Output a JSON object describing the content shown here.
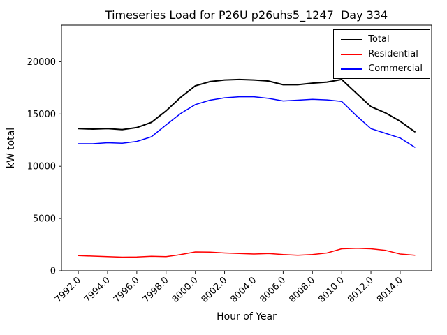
{
  "chart_data": {
    "type": "line",
    "title": "Timeseries Load for P26U p26uhs5_1247  Day 334",
    "xlabel": "Hour of Year",
    "ylabel": "kW total",
    "xlim": [
      7990.85,
      8016.15
    ],
    "ylim": [
      0,
      23500
    ],
    "grid": false,
    "legend_position": "upper right",
    "xticks": [
      7992,
      7994,
      7996,
      7998,
      8000,
      8002,
      8004,
      8006,
      8008,
      8010,
      8012,
      8014
    ],
    "xtick_labels": [
      "7992.0",
      "7994.0",
      "7996.0",
      "7998.0",
      "8000.0",
      "8002.0",
      "8004.0",
      "8006.0",
      "8008.0",
      "8010.0",
      "8012.0",
      "8014.0"
    ],
    "yticks": [
      0,
      5000,
      10000,
      15000,
      20000
    ],
    "ytick_labels": [
      "0",
      "5000",
      "10000",
      "15000",
      "20000"
    ],
    "x": [
      7992,
      7993,
      7994,
      7995,
      7996,
      7997,
      7998,
      7999,
      8000,
      8001,
      8002,
      8003,
      8004,
      8005,
      8006,
      8007,
      8008,
      8009,
      8010,
      8011,
      8012,
      8013,
      8014,
      8015
    ],
    "series": [
      {
        "name": "Total",
        "color": "#000000",
        "linewidth": 2,
        "values": [
          13600,
          13550,
          13600,
          13500,
          13700,
          14200,
          15300,
          16600,
          17700,
          18100,
          18250,
          18300,
          18250,
          18150,
          17800,
          17800,
          17950,
          18050,
          18300,
          17000,
          15700,
          15100,
          14300,
          13300
        ]
      },
      {
        "name": "Residential",
        "color": "#ff0000",
        "linewidth": 1.5,
        "values": [
          1450,
          1400,
          1350,
          1300,
          1320,
          1380,
          1350,
          1550,
          1800,
          1780,
          1700,
          1650,
          1600,
          1650,
          1550,
          1480,
          1550,
          1700,
          2100,
          2150,
          2100,
          1950,
          1600,
          1480
        ]
      },
      {
        "name": "Commercial",
        "color": "#0000ff",
        "linewidth": 1.5,
        "values": [
          12150,
          12150,
          12250,
          12200,
          12380,
          12820,
          13950,
          15050,
          15900,
          16320,
          16550,
          16650,
          16650,
          16500,
          16250,
          16320,
          16400,
          16350,
          16200,
          14850,
          13600,
          13150,
          12700,
          11820
        ]
      }
    ]
  }
}
